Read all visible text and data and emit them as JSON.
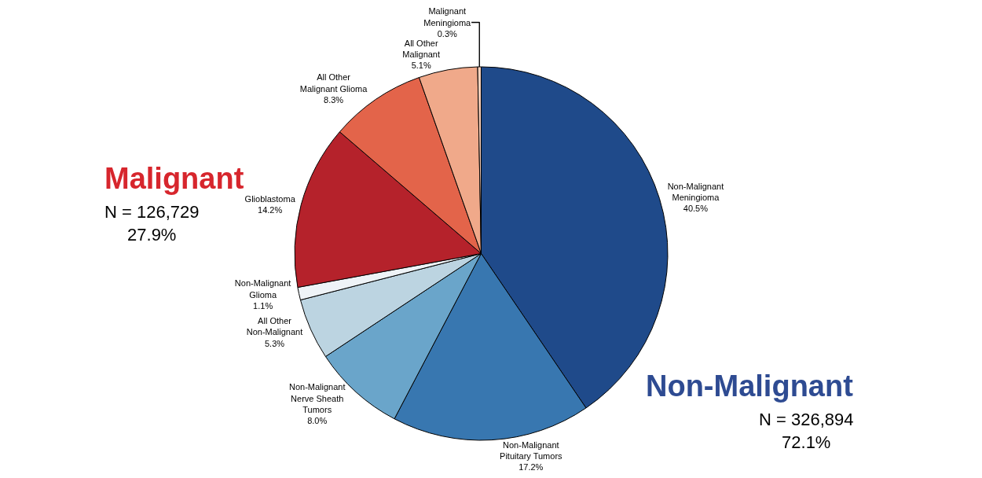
{
  "chart_data": {
    "type": "pie",
    "categories": [
      "Non-Malignant\nMeningioma",
      "Non-Malignant\nPituitary Tumors",
      "Non-Malignant\nNerve Sheath\nTumors",
      "All Other\nNon-Malignant",
      "Non-Malignant\nGlioma",
      "Glioblastoma",
      "All Other\nMalignant Glioma",
      "All Other\nMalignant",
      "Malignant\nMeningioma"
    ],
    "values": [
      40.5,
      17.2,
      8.0,
      5.3,
      1.1,
      14.2,
      8.3,
      5.1,
      0.3
    ],
    "value_labels": [
      "40.5%",
      "17.2%",
      "8.0%",
      "5.3%",
      "1.1%",
      "14.2%",
      "8.3%",
      "5.1%",
      "0.3%"
    ],
    "colors": [
      "#1f4a8a",
      "#3877b0",
      "#6aa5ca",
      "#bcd4e1",
      "#eef3f7",
      "#b5222b",
      "#e3644a",
      "#f0a98a",
      "#fbd3bf"
    ],
    "annotations": [
      "Malignant",
      "N = 126,729\n27.9%",
      "Non-Malignant",
      "N = 326,894\n72.1%"
    ],
    "legend": false
  }
}
